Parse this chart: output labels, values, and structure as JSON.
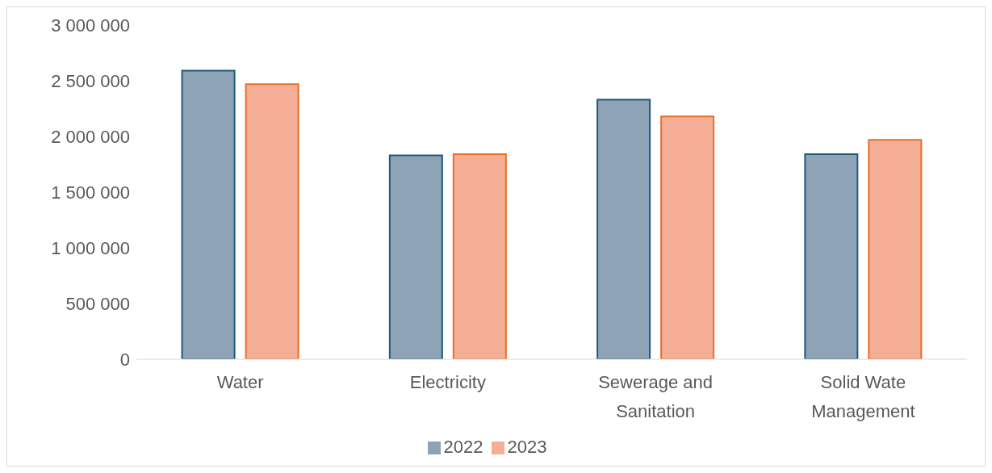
{
  "chart_data": {
    "type": "bar",
    "categories": [
      "Water",
      "Electricity",
      "Sewerage and Sanitation",
      "Solid Wate Management"
    ],
    "series": [
      {
        "name": "2022",
        "color": "#8ea3b5",
        "values": [
          2590000,
          1830000,
          2330000,
          1840000
        ]
      },
      {
        "name": "2023",
        "color": "#f4ae96",
        "values": [
          2470000,
          1840000,
          2180000,
          1970000
        ]
      }
    ],
    "ylim": [
      0,
      3000000
    ],
    "yticks": [
      {
        "value": 0,
        "label": "0"
      },
      {
        "value": 500000,
        "label": "500 000"
      },
      {
        "value": 1000000,
        "label": "1 000 000"
      },
      {
        "value": 1500000,
        "label": "1 500 000"
      },
      {
        "value": 2000000,
        "label": "2 000 000"
      },
      {
        "value": 2500000,
        "label": "2 500 000"
      },
      {
        "value": 3000000,
        "label": "3 000 000"
      }
    ],
    "grid": false,
    "legend": "bottom"
  }
}
